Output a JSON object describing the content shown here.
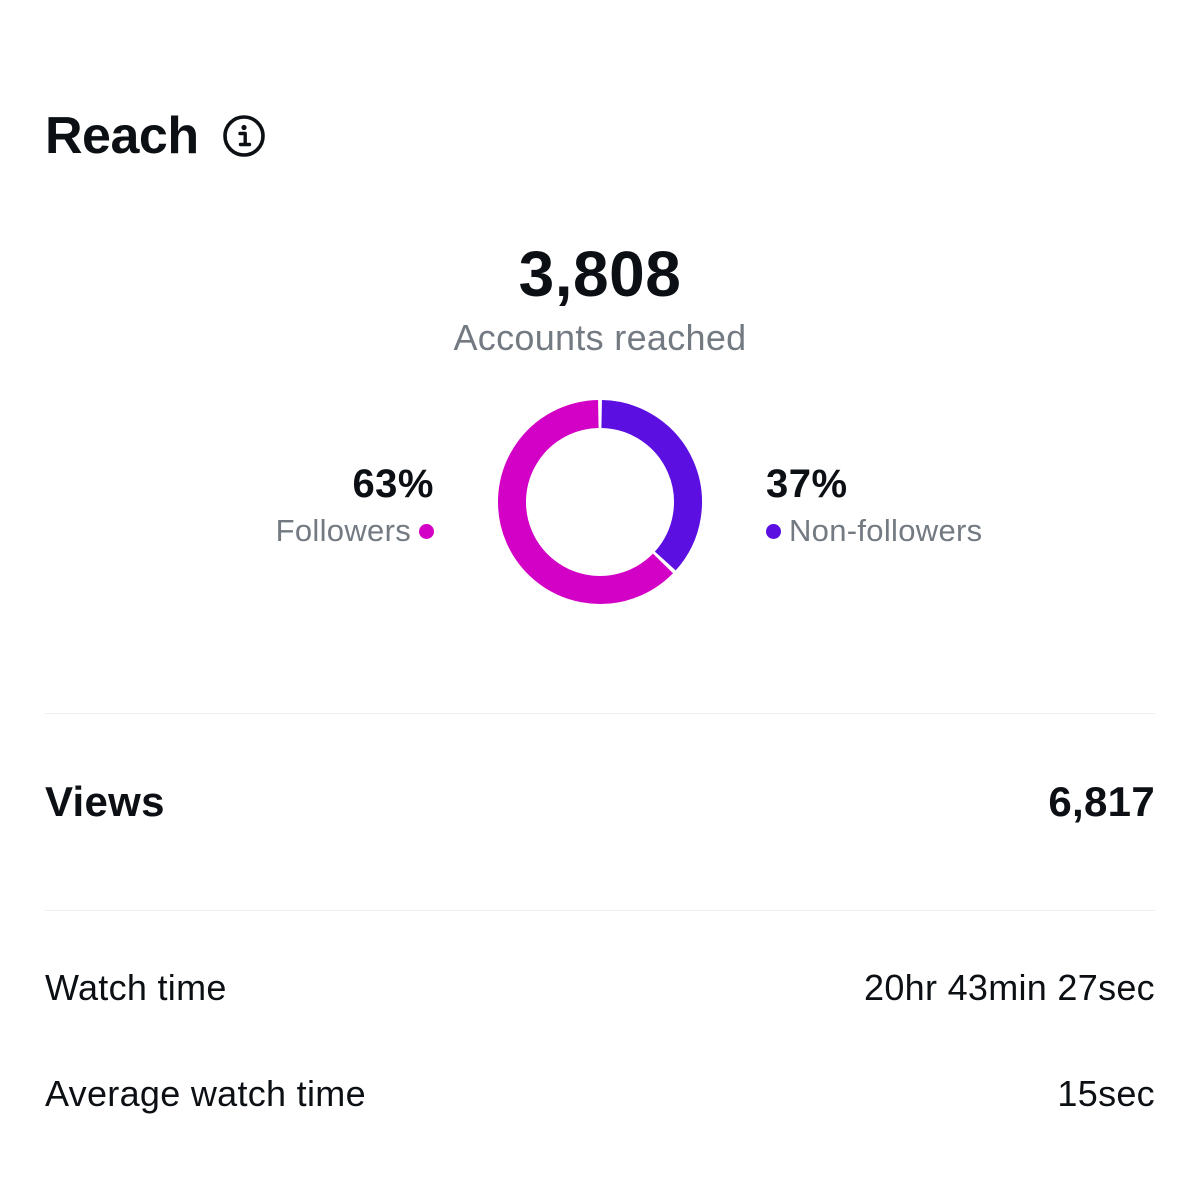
{
  "reach": {
    "title": "Reach",
    "info_icon": "info-circle-icon",
    "total_value": "3,808",
    "total_label": "Accounts reached",
    "segments": [
      {
        "name": "Followers",
        "percent_label": "63%",
        "value": 63,
        "color": "#d300c5"
      },
      {
        "name": "Non-followers",
        "percent_label": "37%",
        "value": 37,
        "color": "#5b0fe0"
      }
    ]
  },
  "views": {
    "label": "Views",
    "value": "6,817"
  },
  "watch_time": {
    "label": "Watch time",
    "value": "20hr 43min 27sec"
  },
  "average_watch_time": {
    "label": "Average watch time",
    "value": "15sec"
  },
  "colors": {
    "text_primary": "#0c1014",
    "text_secondary": "#737a82",
    "divider": "#eef0f2",
    "background": "#ffffff"
  }
}
